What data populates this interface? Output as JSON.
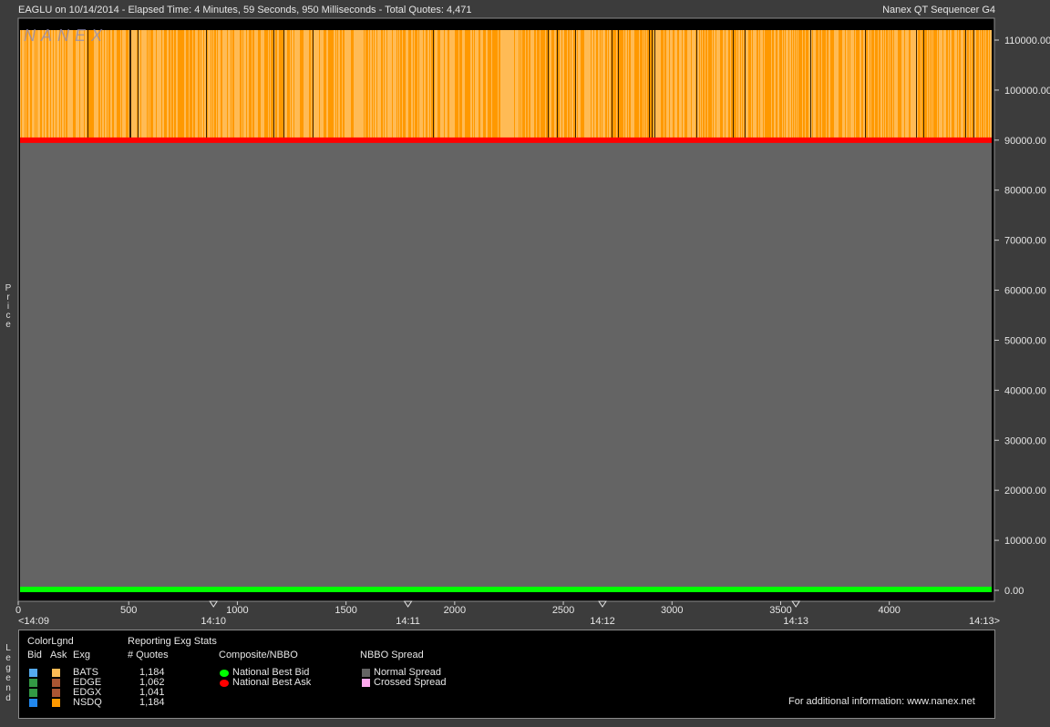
{
  "header": {
    "left": "EAGLU on 10/14/2014  -  Elapsed Time: 4 Minutes, 59 Seconds, 950 Milliseconds  -  Total Quotes: 4,471",
    "right": "Nanex QT Sequencer G4"
  },
  "watermark": "NANEX",
  "y_axis_label": "Price",
  "legend_side_label": "Legend",
  "chart_data": {
    "type": "line",
    "title": "",
    "ylabel": "Price",
    "xlabel": "",
    "xlim": [
      0,
      4471
    ],
    "ylim": [
      0,
      112000
    ],
    "y_ticks": [
      "0.00",
      "10000.00",
      "20000.00",
      "30000.00",
      "40000.00",
      "50000.00",
      "60000.00",
      "70000.00",
      "80000.00",
      "90000.00",
      "100000.00",
      "110000.00"
    ],
    "x_ticks": [
      "0",
      "500",
      "1000",
      "1500",
      "2000",
      "2500",
      "3000",
      "3500",
      "4000"
    ],
    "time_labels": [
      "<14:09",
      "14:10",
      "14:11",
      "14:12",
      "14:13",
      "14:13>"
    ],
    "time_marker_positions": [
      890,
      1785,
      2680,
      3570
    ],
    "series": [
      {
        "name": "National Best Bid",
        "color": "#00ff00",
        "x": [
          0,
          4471
        ],
        "y": [
          0.01,
          0.01
        ]
      },
      {
        "name": "National Best Ask",
        "color": "#ff0000",
        "x": [
          0,
          4471
        ],
        "y": [
          90000,
          90000
        ]
      }
    ],
    "quote_band": {
      "low": 90000,
      "high": 112000,
      "colors": [
        "#ff9900",
        "#ffbb55"
      ]
    },
    "spread_fill": {
      "name": "Normal Spread",
      "color": "#646464",
      "low": 0,
      "high": 90000
    },
    "grid": false
  },
  "legend": {
    "color_legend_title": "ColorLgnd",
    "bid_header": "Bid",
    "ask_header": "Ask",
    "exg_header": "Exg",
    "stats_title": "Reporting Exg Stats",
    "quotes_header": "# Quotes",
    "exchanges": [
      {
        "name": "BATS",
        "quotes": "1,184",
        "bid_color": "#55aaee",
        "ask_color": "#ffbb55"
      },
      {
        "name": "EDGE",
        "quotes": "1,062",
        "bid_color": "#339944",
        "ask_color": "#aa5533"
      },
      {
        "name": "EDGX",
        "quotes": "1,041",
        "bid_color": "#339944",
        "ask_color": "#aa5533"
      },
      {
        "name": "NSDQ",
        "quotes": "1,184",
        "bid_color": "#2288ee",
        "ask_color": "#ff9900"
      }
    ],
    "composite_title": "Composite/NBBO",
    "nbb_label": "National Best Bid",
    "nbb_color": "#00ff00",
    "nbo_label": "National Best Ask",
    "nbo_color": "#ff0000",
    "spread_title": "NBBO Spread",
    "normal_spread_label": "Normal Spread",
    "normal_spread_color": "#646464",
    "crossed_spread_label": "Crossed Spread",
    "crossed_spread_color": "#ffaaee",
    "info": "For additional information: www.nanex.net"
  }
}
